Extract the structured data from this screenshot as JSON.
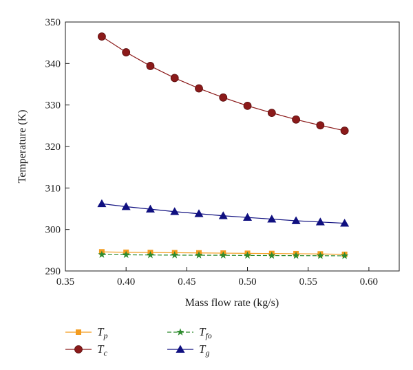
{
  "chart_data": {
    "type": "line",
    "xlabel": "Mass flow rate (kg/s)",
    "ylabel": "Temperature (K)",
    "xlim": [
      0.35,
      0.625
    ],
    "ylim": [
      290,
      350
    ],
    "xticks": [
      "0.35",
      "0.40",
      "0.45",
      "0.50",
      "0.55",
      "0.60"
    ],
    "yticks": [
      "290",
      "300",
      "310",
      "320",
      "330",
      "340",
      "350"
    ],
    "grid": false,
    "legend_position": "bottom",
    "x": [
      0.38,
      0.4,
      0.42,
      0.44,
      0.46,
      0.48,
      0.5,
      0.52,
      0.54,
      0.56,
      0.58
    ],
    "series": [
      {
        "name": "T",
        "sub": "p",
        "marker": "square",
        "color": "#f39c1f",
        "dash": "solid",
        "values": [
          294.6,
          294.5,
          294.45,
          294.4,
          294.35,
          294.3,
          294.25,
          294.2,
          294.15,
          294.1,
          294.0
        ]
      },
      {
        "name": "T",
        "sub": "c",
        "marker": "circle",
        "color": "#8b1a1a",
        "dash": "solid",
        "values": [
          346.5,
          342.7,
          339.4,
          336.5,
          334.0,
          331.8,
          329.8,
          328.1,
          326.5,
          325.1,
          323.8
        ]
      },
      {
        "name": "T",
        "sub": "fo",
        "marker": "star",
        "color": "#2e8b2e",
        "dash": "dashed",
        "values": [
          293.95,
          293.9,
          293.85,
          293.82,
          293.8,
          293.78,
          293.75,
          293.72,
          293.7,
          293.68,
          293.65
        ]
      },
      {
        "name": "T",
        "sub": "g",
        "marker": "triangle",
        "color": "#101080",
        "dash": "solid",
        "values": [
          306.2,
          305.5,
          304.9,
          304.3,
          303.8,
          303.3,
          302.9,
          302.5,
          302.1,
          301.8,
          301.5
        ]
      }
    ]
  }
}
